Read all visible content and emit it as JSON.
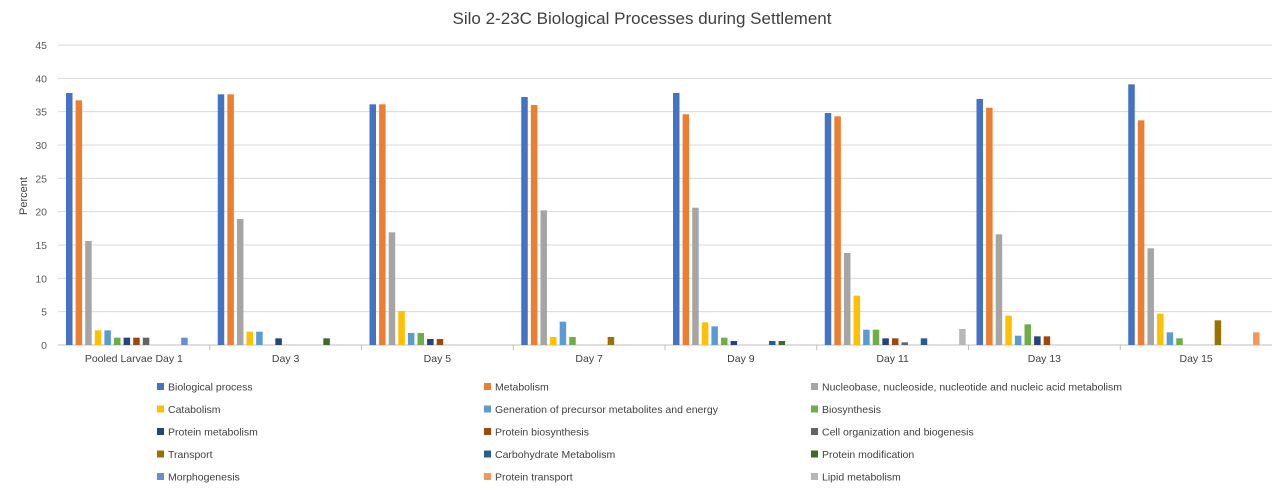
{
  "chart_data": {
    "type": "bar",
    "title": "Silo 2-23C Biological Processes during Settlement",
    "xlabel": "",
    "ylabel": "Percent",
    "ylim": [
      0,
      45
    ],
    "yticks": [
      0,
      5,
      10,
      15,
      20,
      25,
      30,
      35,
      40,
      45
    ],
    "grid": true,
    "legend_position": "bottom",
    "categories": [
      "Pooled Larvae Day 1",
      "Day 3",
      "Day 5",
      "Day 7",
      "Day 9",
      "Day 11",
      "Day 13",
      "Day 15"
    ],
    "series": [
      {
        "name": "Biological process",
        "color": "#4472C4",
        "values": [
          37.8,
          37.6,
          36.1,
          37.2,
          37.8,
          34.8,
          36.9,
          39.1
        ]
      },
      {
        "name": "Metabolism",
        "color": "#ED7D31",
        "values": [
          36.7,
          37.6,
          36.1,
          36.0,
          34.6,
          34.3,
          35.6,
          33.7
        ]
      },
      {
        "name": "Nucleobase, nucleoside, nucleotide and nucleic acid metabolism",
        "color": "#A5A5A5",
        "values": [
          15.6,
          18.9,
          16.9,
          20.2,
          20.6,
          13.8,
          16.6,
          14.5
        ]
      },
      {
        "name": "Catabolism",
        "color": "#FFC000",
        "values": [
          2.2,
          2.0,
          5.1,
          1.2,
          3.4,
          7.4,
          4.4,
          4.7
        ]
      },
      {
        "name": "Generation of precursor metabolites and energy",
        "color": "#5B9BD5",
        "values": [
          2.2,
          2.0,
          1.8,
          3.5,
          2.8,
          2.3,
          1.4,
          1.9
        ]
      },
      {
        "name": "Biosynthesis",
        "color": "#70AD47",
        "values": [
          1.1,
          0,
          1.8,
          1.2,
          1.1,
          2.3,
          3.1,
          1.0
        ]
      },
      {
        "name": "Protein metabolism",
        "color": "#264478",
        "values": [
          1.1,
          1.0,
          0.9,
          0,
          0.6,
          1.0,
          1.3,
          0
        ]
      },
      {
        "name": "Protein biosynthesis",
        "color": "#9E480E",
        "values": [
          1.1,
          0,
          0.9,
          0,
          0,
          1.0,
          1.3,
          0
        ]
      },
      {
        "name": "Cell organization and biogenesis",
        "color": "#636363",
        "values": [
          1.1,
          0,
          0,
          0,
          0,
          0.4,
          0,
          0
        ]
      },
      {
        "name": "Transport",
        "color": "#997300",
        "values": [
          0,
          0,
          0,
          1.2,
          0,
          0,
          0,
          3.7
        ]
      },
      {
        "name": "Carbohydrate Metabolism",
        "color": "#255E91",
        "values": [
          0,
          0,
          0,
          0,
          0.6,
          1.0,
          0,
          0
        ]
      },
      {
        "name": "Protein modification",
        "color": "#43682B",
        "values": [
          0,
          1.0,
          0,
          0,
          0.6,
          0,
          0,
          0
        ]
      },
      {
        "name": "Morphogenesis",
        "color": "#698ED0",
        "values": [
          1.1,
          0,
          0,
          0,
          0,
          0,
          0,
          0
        ]
      },
      {
        "name": "Protein transport",
        "color": "#F1975A",
        "values": [
          0,
          0,
          0,
          0,
          0,
          0,
          0,
          1.9
        ]
      },
      {
        "name": "Lipid metabolism",
        "color": "#B7B7B7",
        "values": [
          0,
          0,
          0,
          0,
          0,
          2.4,
          0,
          0
        ]
      }
    ]
  }
}
